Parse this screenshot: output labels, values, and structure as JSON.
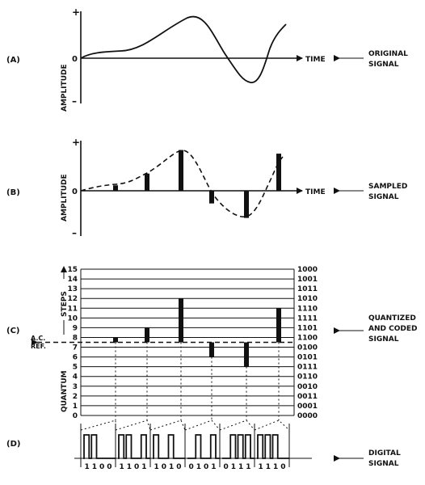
{
  "panels": {
    "a": {
      "tag": "(A)",
      "ylabel": "AMPLITUDE",
      "plus": "+",
      "zero": "0",
      "minus": "–",
      "time": "TIME",
      "caption": [
        "ORIGINAL",
        "SIGNAL"
      ]
    },
    "b": {
      "tag": "(B)",
      "ylabel": "AMPLITUDE",
      "plus": "+",
      "zero": "0",
      "minus": "–",
      "time": "TIME",
      "caption": [
        "SAMPLED",
        "SIGNAL"
      ],
      "sample_heights": [
        0.12,
        0.38,
        0.9,
        -0.28,
        -0.6,
        0.82
      ]
    },
    "c": {
      "tag": "(C)",
      "ylabel_top": "STEPS",
      "ylabel_bottom": "QUANTUM",
      "ac_ref": [
        "A.C.",
        "REF."
      ],
      "caption": [
        "QUANTIZED",
        "AND CODED",
        "SIGNAL"
      ],
      "steps": [
        "15",
        "14",
        "13",
        "12",
        "11",
        "10",
        "9",
        "8",
        "7",
        "6",
        "5",
        "4",
        "3",
        "2",
        "1",
        "0"
      ],
      "codes": [
        "1000",
        "1001",
        "1011",
        "1010",
        "1110",
        "1111",
        "1101",
        "1100",
        "0100",
        "0101",
        "0111",
        "0110",
        "0010",
        "0011",
        "0001",
        "0000"
      ],
      "ac_ref_level": 7.5,
      "quantized_levels": [
        8,
        9,
        12,
        6,
        5,
        11
      ]
    },
    "d": {
      "tag": "(D)",
      "caption": [
        "DIGITAL",
        "SIGNAL"
      ],
      "words": [
        "1100",
        "1101",
        "1010",
        "0101",
        "0111",
        "1110"
      ]
    }
  }
}
